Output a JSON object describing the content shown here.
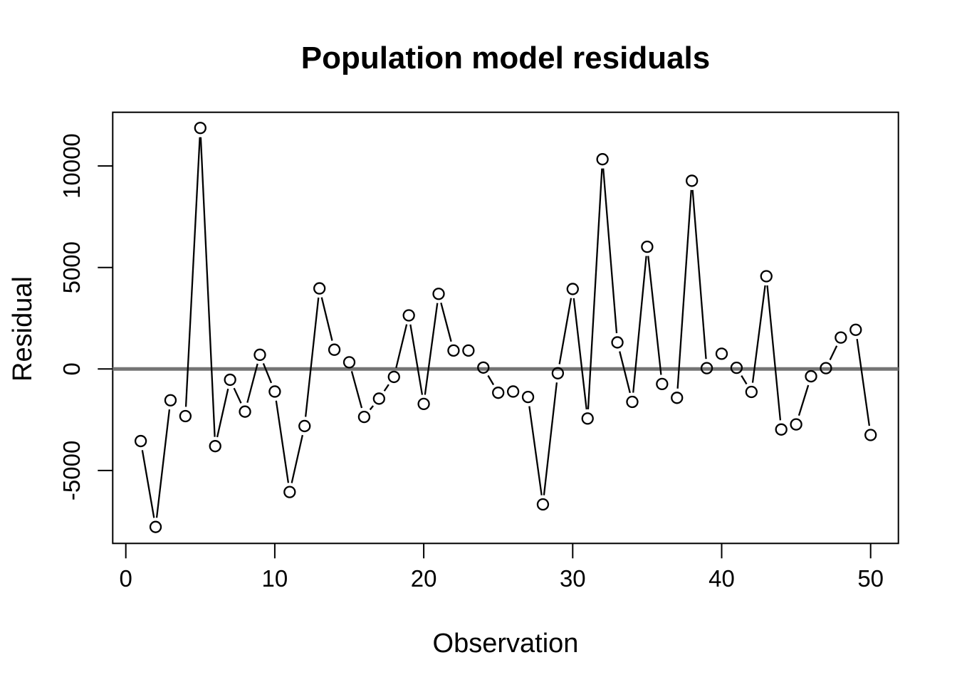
{
  "chart_data": {
    "type": "line",
    "style": "r-base-type-b-points-joined-by-gapped-segments",
    "title": "Population model residuals",
    "xlabel": "Observation",
    "ylabel": "Residual",
    "x": [
      1,
      2,
      3,
      4,
      5,
      6,
      7,
      8,
      9,
      10,
      11,
      12,
      13,
      14,
      15,
      16,
      17,
      18,
      19,
      20,
      21,
      22,
      23,
      24,
      25,
      26,
      27,
      28,
      29,
      30,
      31,
      32,
      33,
      34,
      35,
      36,
      37,
      38,
      39,
      40,
      41,
      42,
      43,
      44,
      45,
      46,
      47,
      48,
      49,
      50
    ],
    "series": [
      {
        "name": "residuals",
        "values": [
          -3550,
          -7780,
          -1540,
          -2320,
          11870,
          -3800,
          -530,
          -2100,
          700,
          -1110,
          -6060,
          -2810,
          3970,
          950,
          330,
          -2360,
          -1460,
          -390,
          2640,
          -1720,
          3700,
          910,
          910,
          70,
          -1170,
          -1110,
          -1380,
          -6670,
          -210,
          3940,
          -2440,
          10330,
          1310,
          -1620,
          6020,
          -740,
          -1420,
          9270,
          40,
          750,
          60,
          -1130,
          4570,
          -2980,
          -2730,
          -360,
          40,
          1550,
          1930,
          -3250
        ]
      }
    ],
    "x_ticks": [
      0,
      10,
      20,
      30,
      40,
      50
    ],
    "x_tick_labels": [
      "0",
      "10",
      "20",
      "30",
      "40",
      "50"
    ],
    "y_ticks": [
      -5000,
      0,
      5000,
      10000
    ],
    "y_tick_labels": [
      "-5000",
      "0",
      "5000",
      "10000"
    ],
    "xlim": [
      -0.9,
      51.9
    ],
    "ylim": [
      -8600,
      12650
    ],
    "grid": false,
    "legend": null,
    "reference_line": {
      "y": 0,
      "color": "#747474"
    },
    "line_color": "#000000",
    "point_color": "#000000",
    "axis_color": "#000000",
    "background_color": "#ffffff"
  }
}
